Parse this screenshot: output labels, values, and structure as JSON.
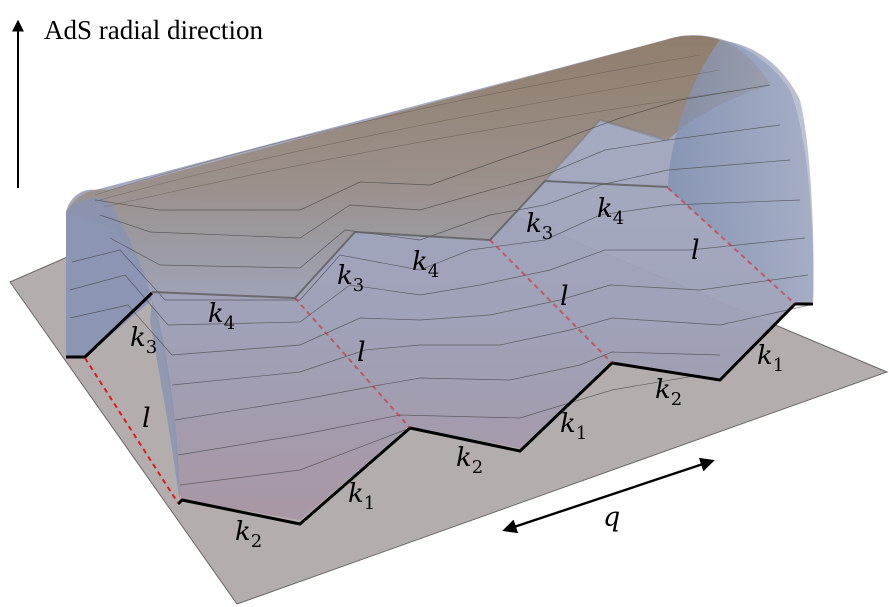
{
  "axis_label": "AdS radial direction",
  "labels": {
    "k1": "k",
    "k1_sub": "1",
    "k2": "k",
    "k2_sub": "2",
    "k3": "k",
    "k3_sub": "3",
    "k4": "k",
    "k4_sub": "4",
    "l": "l",
    "q": "q"
  },
  "colors": {
    "plane": "#b4adad",
    "surface_top": "#8a7866",
    "surface_side": "#8f97b0",
    "boundary_black": "#000000",
    "boundary_red": "#d81e1e"
  }
}
